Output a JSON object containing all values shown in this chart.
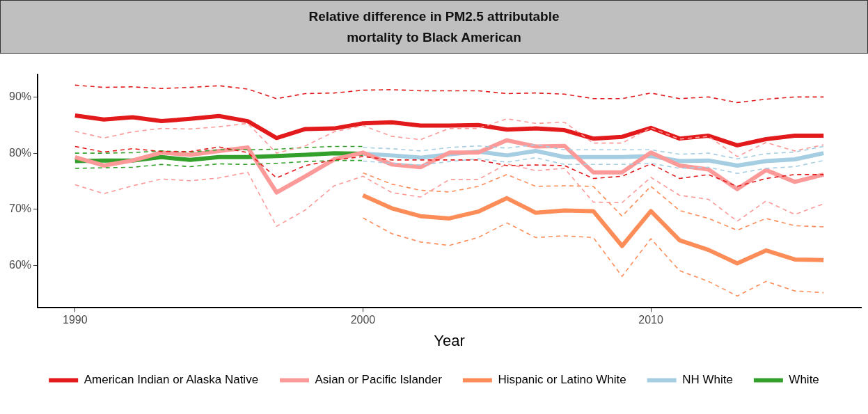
{
  "chart_data": {
    "type": "line",
    "title": "Relative difference in PM2.5 attributable\nmortality to Black American",
    "xlabel": "Year",
    "x": [
      1990,
      1991,
      1992,
      1993,
      1994,
      1995,
      1996,
      1997,
      1998,
      1999,
      2000,
      2001,
      2002,
      2003,
      2004,
      2005,
      2006,
      2007,
      2008,
      2009,
      2010,
      2011,
      2012,
      2013,
      2014,
      2015,
      2016
    ],
    "xlim": [
      1988.7,
      2017.3
    ],
    "xticks": [
      1990,
      2000,
      2010
    ],
    "ylim": [
      52.5,
      94
    ],
    "yticks": [
      {
        "value": 60,
        "label": "60%"
      },
      {
        "value": 70,
        "label": "70%"
      },
      {
        "value": 80,
        "label": "80%"
      },
      {
        "value": 90,
        "label": "90%"
      }
    ],
    "grid": false,
    "legend": "bottom",
    "marker": "none",
    "line_style": "solid",
    "series": [
      {
        "color": "#e31a1c",
        "line_style": "dashed",
        "values": [
          92.1,
          91.7,
          91.8,
          91.5,
          91.7,
          92.0,
          91.4,
          89.7,
          90.6,
          90.7,
          91.2,
          91.3,
          91.1,
          91.1,
          91.1,
          90.6,
          90.7,
          90.5,
          89.7,
          89.7,
          90.7,
          89.7,
          90.0,
          89.0,
          89.6,
          90.0,
          90.0
        ]
      },
      {
        "color": "#e31a1c",
        "line_style": "dashed",
        "values": [
          81.2,
          80.2,
          80.8,
          80.3,
          80.3,
          81.1,
          80.1,
          75.6,
          77.8,
          78.8,
          79.4,
          78.8,
          78.8,
          78.8,
          78.8,
          77.8,
          77.9,
          77.8,
          75.5,
          75.9,
          78.1,
          75.5,
          76.2,
          74.1,
          75.5,
          76.2,
          76.2
        ]
      },
      {
        "color": "#fb9a99",
        "line_style": "dashed",
        "values": [
          83.9,
          82.7,
          83.8,
          84.4,
          84.3,
          84.7,
          85.3,
          80.0,
          81.3,
          83.8,
          84.9,
          83.0,
          82.4,
          84.4,
          84.4,
          86.1,
          85.3,
          85.5,
          81.8,
          81.8,
          84.5,
          82.5,
          83.0,
          79.4,
          81.9,
          80.4,
          81.5
        ]
      },
      {
        "color": "#fb9a99",
        "line_style": "dashed",
        "values": [
          74.4,
          72.8,
          74.2,
          75.4,
          75.1,
          75.6,
          76.6,
          67.0,
          69.9,
          74.2,
          75.9,
          73.0,
          72.2,
          75.3,
          75.3,
          78.1,
          76.9,
          77.3,
          71.3,
          71.2,
          75.7,
          72.5,
          71.8,
          67.9,
          71.5,
          69.1,
          71.0
        ]
      },
      {
        "color": "#fc8d59",
        "line_style": "dashed",
        "values": [
          null,
          null,
          null,
          null,
          null,
          null,
          null,
          null,
          null,
          null,
          76.5,
          74.5,
          73.4,
          73.1,
          74.1,
          76.2,
          74.1,
          74.2,
          74.1,
          68.8,
          74.1,
          69.8,
          68.4,
          66.3,
          68.4,
          67.1,
          66.9
        ]
      },
      {
        "color": "#fc8d59",
        "line_style": "dashed",
        "values": [
          null,
          null,
          null,
          null,
          null,
          null,
          null,
          null,
          null,
          null,
          68.5,
          65.7,
          64.2,
          63.6,
          65.0,
          67.6,
          65.0,
          65.3,
          65.0,
          58.1,
          64.8,
          59.1,
          57.2,
          54.6,
          57.2,
          55.5,
          55.2
        ]
      },
      {
        "color": "#a6cee3",
        "line_style": "dashed",
        "values": [
          null,
          null,
          null,
          null,
          null,
          null,
          null,
          null,
          null,
          null,
          81.0,
          80.8,
          80.4,
          81.0,
          81.3,
          80.9,
          81.5,
          80.6,
          80.6,
          80.6,
          80.6,
          79.8,
          80.0,
          79.0,
          79.9,
          80.2,
          81.2
        ]
      },
      {
        "color": "#a6cee3",
        "line_style": "dashed",
        "values": [
          null,
          null,
          null,
          null,
          null,
          null,
          null,
          null,
          null,
          null,
          78.6,
          78.2,
          77.9,
          78.5,
          79.0,
          78.4,
          79.2,
          78.0,
          78.0,
          78.0,
          78.2,
          77.3,
          77.5,
          76.4,
          77.3,
          77.6,
          78.7
        ]
      },
      {
        "color": "#33a02c",
        "line_style": "dashed",
        "values": [
          80.0,
          80.0,
          80.1,
          80.4,
          80.2,
          80.6,
          80.6,
          80.7,
          81.0,
          81.2,
          81.2,
          null,
          null,
          null,
          null,
          null,
          null,
          null,
          null,
          null,
          null,
          null,
          null,
          null,
          null,
          null,
          null
        ]
      },
      {
        "color": "#33a02c",
        "line_style": "dashed",
        "values": [
          77.3,
          77.4,
          77.5,
          78.0,
          77.6,
          78.1,
          78.0,
          78.2,
          78.5,
          78.7,
          78.7,
          null,
          null,
          null,
          null,
          null,
          null,
          null,
          null,
          null,
          null,
          null,
          null,
          null,
          null,
          null,
          null
        ]
      },
      {
        "name": "American Indian or Alaska Native",
        "color": "#e31a1c",
        "values": [
          86.7,
          86.0,
          86.4,
          85.7,
          86.1,
          86.6,
          85.7,
          82.7,
          84.3,
          84.4,
          85.3,
          85.5,
          84.9,
          84.9,
          85.0,
          84.2,
          84.4,
          84.1,
          82.6,
          82.9,
          84.5,
          82.6,
          83.1,
          81.4,
          82.5,
          83.1,
          83.1
        ]
      },
      {
        "name": "Asian or Pacific Islander",
        "color": "#fb9a99",
        "values": [
          79.3,
          77.8,
          78.7,
          80.1,
          79.7,
          80.4,
          81.0,
          73.0,
          75.9,
          78.9,
          80.1,
          78.0,
          77.5,
          80.1,
          80.1,
          82.3,
          81.2,
          81.3,
          76.6,
          76.6,
          80.1,
          77.8,
          77.1,
          73.6,
          77.0,
          74.9,
          76.2
        ]
      },
      {
        "name": "Hispanic or Latino White",
        "color": "#fc8d59",
        "values": [
          null,
          null,
          null,
          null,
          null,
          null,
          null,
          null,
          null,
          null,
          72.5,
          70.2,
          68.8,
          68.4,
          69.6,
          72.0,
          69.4,
          69.8,
          69.7,
          63.5,
          69.7,
          64.5,
          62.8,
          60.4,
          62.7,
          61.1,
          61.0
        ]
      },
      {
        "name": "NH White",
        "color": "#a6cee3",
        "values": [
          null,
          null,
          null,
          null,
          null,
          null,
          null,
          null,
          null,
          null,
          79.9,
          79.6,
          79.2,
          79.8,
          80.3,
          79.6,
          80.4,
          79.3,
          79.3,
          79.3,
          79.5,
          78.6,
          78.7,
          77.8,
          78.6,
          78.9,
          80.0
        ]
      },
      {
        "name": "White",
        "color": "#33a02c",
        "values": [
          78.6,
          78.7,
          78.7,
          79.3,
          78.8,
          79.3,
          79.3,
          79.5,
          79.7,
          80.0,
          79.9,
          null,
          null,
          null,
          null,
          null,
          null,
          null,
          null,
          null,
          null,
          null,
          null,
          null,
          null,
          null,
          null
        ]
      }
    ]
  }
}
